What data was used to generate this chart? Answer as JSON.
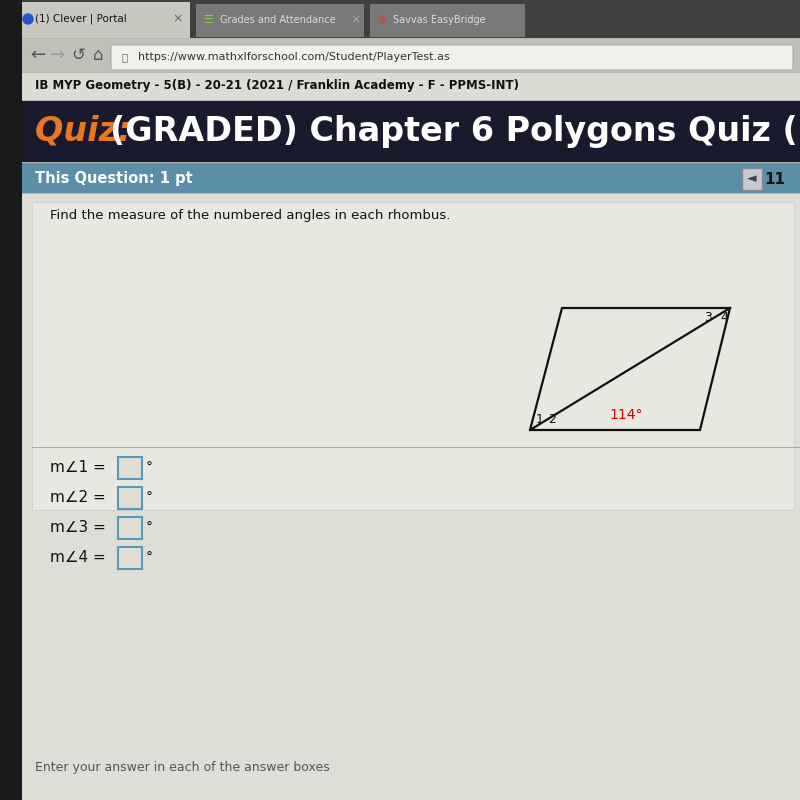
{
  "bg_color": "#b8b8b0",
  "tab_bar_color": "#3a3a3a",
  "tab1_text": "(1) Clever | Portal",
  "tab2_text": "Grades and Attendance",
  "tab3_text": "Savvas EasyBridge",
  "url_text": "https://www.mathxlforschool.com/Student/PlayerTest.as",
  "course_text": "IB MYP Geometry - 5(B) - 20-21 (2021 / Franklin Academy - F - PPMS-INT)",
  "quiz_prefix": "Quiz: ",
  "quiz_title": "(GRADED) Chapter 6 Polygons Quiz (",
  "quiz_bg": "#1a1a2e",
  "quiz_prefix_color": "#e87722",
  "quiz_title_color": "#ffffff",
  "subheader_bg": "#5b8fa8",
  "subheader_text": "This Question: 1 pt",
  "subheader_text_color": "#ffffff",
  "question_text": "Find the measure of the numbered angles in each rhombus.",
  "angle_given": "114°",
  "angle_given_color": "#cc0000",
  "answer_labels": [
    "m∠1 = ",
    "m∠2 = ",
    "m∠3 = ",
    "m∠4 = "
  ],
  "rhombus_color": "#111111",
  "label_color": "#111111",
  "content_bg": "#deded6",
  "page_number": "11",
  "left_bar_color": "#1a1a1a",
  "addr_bar_bg": "#c0c0b8",
  "tab1_bg": "#c8c8c0",
  "tab2_bg": "#787878",
  "url_bar_bg": "#f0f0ec",
  "bottom_text": "Enter your answer in each of the answer boxes"
}
